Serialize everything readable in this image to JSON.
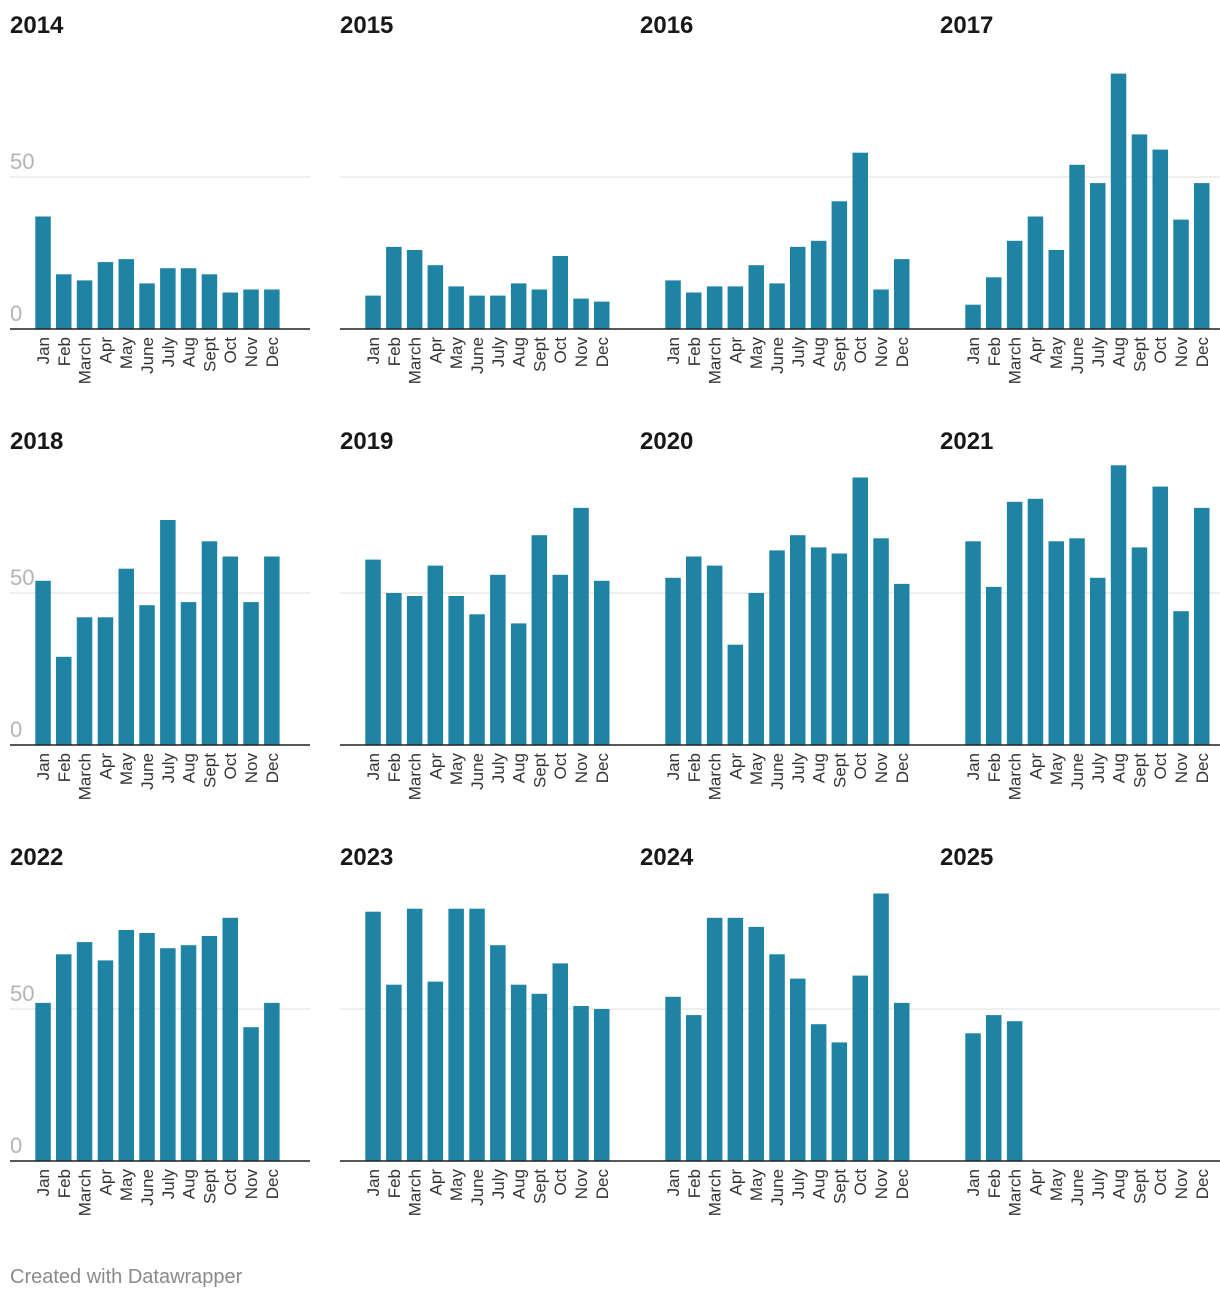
{
  "chart_data": {
    "type": "bar",
    "layout": "small-multiples",
    "bar_color": "#1f83a3",
    "grid": true,
    "y_ticks": [
      0,
      50
    ],
    "ylim": [
      0,
      88
    ],
    "categories": [
      "Jan",
      "Feb",
      "March",
      "Apr",
      "May",
      "June",
      "July",
      "Aug",
      "Sept",
      "Oct",
      "Nov",
      "Dec"
    ],
    "panels": [
      {
        "title": "2014",
        "values": [
          37,
          18,
          16,
          22,
          23,
          15,
          20,
          20,
          18,
          12,
          13,
          13
        ]
      },
      {
        "title": "2015",
        "values": [
          11,
          27,
          26,
          21,
          14,
          11,
          11,
          15,
          13,
          24,
          10,
          9
        ]
      },
      {
        "title": "2016",
        "values": [
          16,
          12,
          14,
          14,
          21,
          15,
          27,
          29,
          42,
          58,
          13,
          23
        ]
      },
      {
        "title": "2017",
        "values": [
          8,
          17,
          29,
          37,
          26,
          54,
          48,
          84,
          64,
          59,
          36,
          48
        ]
      },
      {
        "title": "2018",
        "values": [
          54,
          29,
          42,
          42,
          58,
          46,
          74,
          47,
          67,
          62,
          47,
          62
        ]
      },
      {
        "title": "2019",
        "values": [
          61,
          50,
          49,
          59,
          49,
          43,
          56,
          40,
          69,
          56,
          78,
          54
        ]
      },
      {
        "title": "2020",
        "values": [
          55,
          62,
          59,
          33,
          50,
          64,
          69,
          65,
          63,
          88,
          68,
          53
        ]
      },
      {
        "title": "2021",
        "values": [
          67,
          52,
          80,
          81,
          67,
          68,
          55,
          92,
          65,
          85,
          44,
          78
        ]
      },
      {
        "title": "2022",
        "values": [
          52,
          68,
          72,
          66,
          76,
          75,
          70,
          71,
          74,
          80,
          44,
          52
        ]
      },
      {
        "title": "2023",
        "values": [
          82,
          58,
          83,
          59,
          83,
          83,
          71,
          58,
          55,
          65,
          51,
          50
        ]
      },
      {
        "title": "2024",
        "values": [
          54,
          48,
          80,
          80,
          77,
          68,
          60,
          45,
          39,
          61,
          88,
          52
        ]
      },
      {
        "title": "2025",
        "values": [
          42,
          48,
          46,
          null,
          null,
          null,
          null,
          null,
          null,
          null,
          null,
          null
        ]
      }
    ]
  },
  "footer": {
    "credit": "Created with Datawrapper"
  }
}
